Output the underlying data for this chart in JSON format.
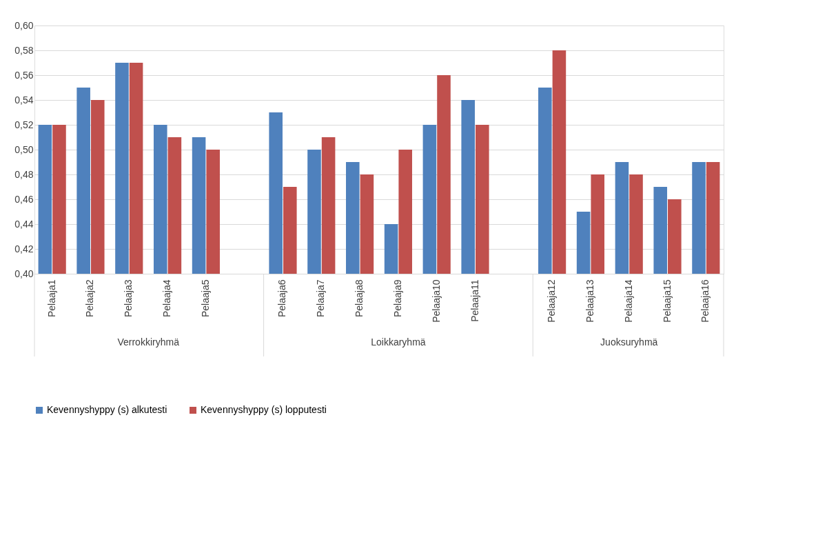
{
  "chart_data": {
    "type": "bar",
    "categories": [
      "Pelaaja1",
      "Pelaaja2",
      "Pelaaja3",
      "Pelaaja4",
      "Pelaaja5",
      null,
      "Pelaaja6",
      "Pelaaja7",
      "Pelaaja8",
      "Pelaaja9",
      "Pelaaja10",
      "Pelaaja11",
      null,
      "Pelaaja12",
      "Pelaaja13",
      "Pelaaja14",
      "Pelaaja15",
      "Pelaaja16"
    ],
    "series": [
      {
        "name": "Kevennyshyppy (s) alkutesti",
        "color": "#4f81bd",
        "values": [
          0.52,
          0.55,
          0.57,
          0.52,
          0.51,
          null,
          0.53,
          0.5,
          0.49,
          0.44,
          0.52,
          0.54,
          null,
          0.55,
          0.45,
          0.49,
          0.47,
          0.49
        ]
      },
      {
        "name": "Kevennyshyppy (s) lopputesti",
        "color": "#c0504d",
        "values": [
          0.52,
          0.54,
          0.57,
          0.51,
          0.5,
          null,
          0.47,
          0.51,
          0.48,
          0.5,
          0.56,
          0.52,
          null,
          0.58,
          0.48,
          0.48,
          0.46,
          0.49
        ]
      }
    ],
    "annotations": [
      "Verrokkiryhmä",
      "Loikkaryhmä",
      "Juoksuryhmä"
    ],
    "ylim": [
      0.4,
      0.6
    ],
    "yticks": [
      {
        "value": 0.4,
        "label": "0,40"
      },
      {
        "value": 0.42,
        "label": "0,42"
      },
      {
        "value": 0.44,
        "label": "0,44"
      },
      {
        "value": 0.46,
        "label": "0,46"
      },
      {
        "value": 0.48,
        "label": "0,48"
      },
      {
        "value": 0.5,
        "label": "0,50"
      },
      {
        "value": 0.52,
        "label": "0,52"
      },
      {
        "value": 0.54,
        "label": "0,54"
      },
      {
        "value": 0.56,
        "label": "0,56"
      },
      {
        "value": 0.58,
        "label": "0,58"
      },
      {
        "value": 0.6,
        "label": "0,60"
      }
    ],
    "grid": "y",
    "legend": "bottom"
  }
}
